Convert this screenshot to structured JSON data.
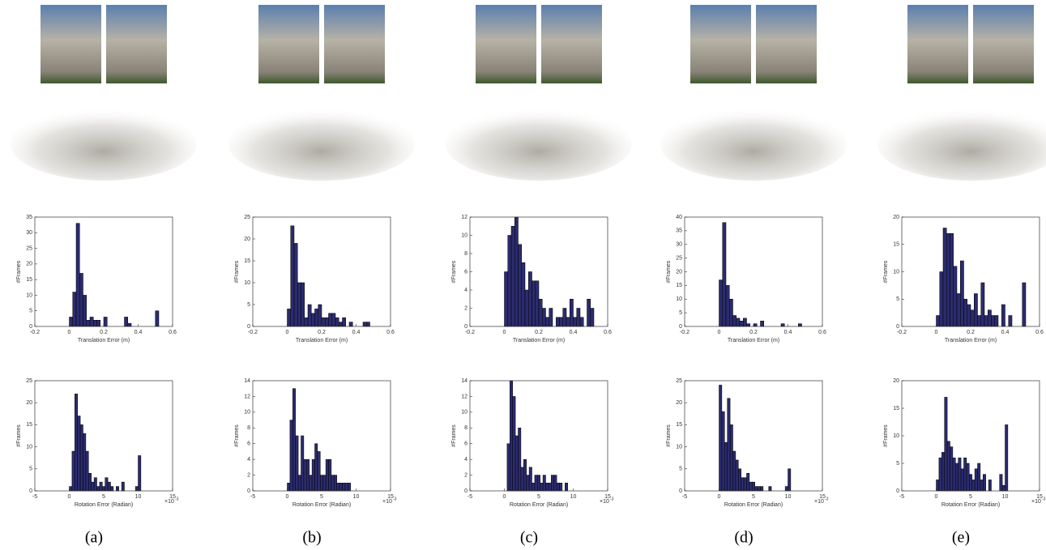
{
  "panels": [
    "(a)",
    "(b)",
    "(c)",
    "(d)",
    "(e)"
  ],
  "chart_data": [
    {
      "type": "histogram",
      "color": "#2b2b6e",
      "xlabel": "Translation Error (m)",
      "ylabel": "#Frames",
      "bins": [
        0,
        0.02,
        0.04,
        0.06,
        0.08,
        0.1,
        0.12,
        0.14,
        0.16,
        0.18,
        0.2,
        0.22,
        0.24,
        0.26,
        0.28,
        0.3,
        0.32,
        0.34,
        0.36,
        0.38,
        0.4,
        0.42,
        0.44,
        0.46,
        0.48,
        0.5,
        0.52
      ],
      "counts": [
        3,
        11,
        33,
        17,
        10,
        2,
        3,
        2,
        2,
        0,
        3,
        0,
        0,
        0,
        0,
        0,
        3,
        1,
        0,
        0,
        0,
        0,
        0,
        0,
        0,
        5
      ],
      "xlim": [
        -0.2,
        0.6
      ],
      "xticks": [
        -0.2,
        0,
        0.2,
        0.4,
        0.6
      ],
      "ylim": [
        0,
        35
      ],
      "yticks": [
        0,
        5,
        10,
        15,
        20,
        25,
        30,
        35
      ]
    },
    {
      "type": "histogram",
      "color": "#2b2b6e",
      "xlabel": "Translation Error (m)",
      "ylabel": "#Frames",
      "bins": [
        0,
        0.02,
        0.04,
        0.06,
        0.08,
        0.1,
        0.12,
        0.14,
        0.16,
        0.18,
        0.2,
        0.22,
        0.24,
        0.26,
        0.28,
        0.3,
        0.32,
        0.34,
        0.36,
        0.38,
        0.4,
        0.42,
        0.44,
        0.46,
        0.48,
        0.5,
        0.52
      ],
      "counts": [
        4,
        23,
        19,
        10,
        10,
        2,
        5,
        3,
        4,
        5,
        2,
        2,
        3,
        3,
        2,
        1,
        2,
        0,
        1,
        0,
        0,
        0,
        1,
        1,
        0,
        0
      ],
      "xlim": [
        -0.2,
        0.6
      ],
      "xticks": [
        -0.2,
        0,
        0.2,
        0.4,
        0.6
      ],
      "ylim": [
        0,
        25
      ],
      "yticks": [
        0,
        5,
        10,
        15,
        20,
        25
      ]
    },
    {
      "type": "histogram",
      "color": "#2b2b6e",
      "xlabel": "Translation Error (m)",
      "ylabel": "#Frames",
      "bins": [
        0,
        0.02,
        0.04,
        0.06,
        0.08,
        0.1,
        0.12,
        0.14,
        0.16,
        0.18,
        0.2,
        0.22,
        0.24,
        0.26,
        0.28,
        0.3,
        0.32,
        0.34,
        0.36,
        0.38,
        0.4,
        0.42,
        0.44,
        0.46,
        0.48,
        0.5,
        0.52
      ],
      "counts": [
        6,
        10,
        11,
        12,
        9,
        7,
        4,
        6,
        5,
        5,
        3,
        2,
        1,
        2,
        0,
        1,
        1,
        2,
        1,
        3,
        1,
        2,
        1,
        0,
        3,
        2
      ],
      "xlim": [
        -0.2,
        0.6
      ],
      "xticks": [
        -0.2,
        0,
        0.2,
        0.4,
        0.6
      ],
      "ylim": [
        0,
        12
      ],
      "yticks": [
        0,
        2,
        4,
        6,
        8,
        10,
        12
      ]
    },
    {
      "type": "histogram",
      "color": "#2b2b6e",
      "xlabel": "Translation Error (m)",
      "ylabel": "#Frames",
      "bins": [
        0,
        0.02,
        0.04,
        0.06,
        0.08,
        0.1,
        0.12,
        0.14,
        0.16,
        0.18,
        0.2,
        0.22,
        0.24,
        0.26,
        0.28,
        0.3,
        0.32,
        0.34,
        0.36,
        0.38,
        0.4,
        0.42,
        0.44,
        0.46,
        0.48,
        0.5,
        0.52
      ],
      "counts": [
        17,
        38,
        15,
        10,
        4,
        3,
        2,
        3,
        1,
        0,
        1,
        0,
        2,
        0,
        0,
        0,
        0,
        0,
        1,
        0,
        0,
        0,
        0,
        1,
        0,
        0
      ],
      "xlim": [
        -0.2,
        0.6
      ],
      "xticks": [
        -0.2,
        0,
        0.2,
        0.4,
        0.6
      ],
      "ylim": [
        0,
        40
      ],
      "yticks": [
        0,
        5,
        10,
        15,
        20,
        25,
        30,
        35,
        40
      ]
    },
    {
      "type": "histogram",
      "color": "#2b2b6e",
      "xlabel": "Translation Error (m)",
      "ylabel": "#Frames",
      "bins": [
        0,
        0.02,
        0.04,
        0.06,
        0.08,
        0.1,
        0.12,
        0.14,
        0.16,
        0.18,
        0.2,
        0.22,
        0.24,
        0.26,
        0.28,
        0.3,
        0.32,
        0.34,
        0.36,
        0.38,
        0.4,
        0.42,
        0.44,
        0.46,
        0.48,
        0.5,
        0.52
      ],
      "counts": [
        2,
        10,
        18,
        17,
        17,
        11,
        6,
        12,
        5,
        4,
        3,
        6,
        2,
        8,
        2,
        3,
        2,
        2,
        0,
        4,
        0,
        2,
        0,
        0,
        0,
        8
      ],
      "xlim": [
        -0.2,
        0.6
      ],
      "xticks": [
        -0.2,
        0,
        0.2,
        0.4,
        0.6
      ],
      "ylim": [
        0,
        20
      ],
      "yticks": [
        0,
        5,
        10,
        15,
        20
      ]
    },
    {
      "type": "histogram",
      "color": "#2b2b6e",
      "xlabel": "Rotation Error (Radian)",
      "ylabel": "#Frames",
      "x_scale_base": "×10",
      "x_scale_exponent": "-3",
      "bins": [
        0,
        0.4,
        0.8,
        1.2,
        1.6,
        2,
        2.4,
        2.8,
        3.2,
        3.6,
        4,
        4.4,
        4.8,
        5.2,
        5.6,
        6,
        6.4,
        6.8,
        7.2,
        7.6,
        8,
        8.4,
        8.8,
        9.2,
        9.6,
        10,
        10.4
      ],
      "counts": [
        1,
        9,
        22,
        17,
        15,
        13,
        9,
        4,
        2,
        3,
        1,
        2,
        1,
        3,
        2,
        1,
        0,
        1,
        0,
        2,
        0,
        0,
        0,
        0,
        1,
        8
      ],
      "xlim": [
        -5,
        15
      ],
      "xticks": [
        -5,
        0,
        5,
        10,
        15
      ],
      "ylim": [
        0,
        25
      ],
      "yticks": [
        0,
        5,
        10,
        15,
        20,
        25
      ]
    },
    {
      "type": "histogram",
      "color": "#2b2b6e",
      "xlabel": "Rotation Error (Radian)",
      "ylabel": "#Frames",
      "x_scale_base": "×10",
      "x_scale_exponent": "-3",
      "bins": [
        0,
        0.4,
        0.8,
        1.2,
        1.6,
        2,
        2.4,
        2.8,
        3.2,
        3.6,
        4,
        4.4,
        4.8,
        5.2,
        5.6,
        6,
        6.4,
        6.8,
        7.2,
        7.6,
        8,
        8.4,
        8.8,
        9.2,
        9.6,
        10,
        10.4
      ],
      "counts": [
        1,
        9,
        13,
        7,
        2,
        7,
        4,
        4,
        2,
        4,
        6,
        5,
        2,
        2,
        4,
        4,
        2,
        2,
        1,
        1,
        1,
        1,
        1,
        0,
        0,
        0
      ],
      "xlim": [
        -5,
        15
      ],
      "xticks": [
        -5,
        0,
        5,
        10,
        15
      ],
      "ylim": [
        0,
        14
      ],
      "yticks": [
        0,
        2,
        4,
        6,
        8,
        10,
        12,
        14
      ]
    },
    {
      "type": "histogram",
      "color": "#2b2b6e",
      "xlabel": "Rotation Error (Radian)",
      "ylabel": "#Frames",
      "x_scale_base": "×10",
      "x_scale_exponent": "-3",
      "bins": [
        0,
        0.4,
        0.8,
        1.2,
        1.6,
        2,
        2.4,
        2.8,
        3.2,
        3.6,
        4,
        4.4,
        4.8,
        5.2,
        5.6,
        6,
        6.4,
        6.8,
        7.2,
        7.6,
        8,
        8.4,
        8.8,
        9.2,
        9.6,
        10,
        10.4
      ],
      "counts": [
        0,
        6,
        14,
        12,
        7,
        8,
        3,
        4,
        2,
        3,
        1,
        2,
        2,
        1,
        2,
        1,
        1,
        2,
        2,
        1,
        1,
        0,
        1,
        0,
        0,
        0
      ],
      "xlim": [
        -5,
        15
      ],
      "xticks": [
        -5,
        0,
        5,
        10,
        15
      ],
      "ylim": [
        0,
        14
      ],
      "yticks": [
        0,
        2,
        4,
        6,
        8,
        10,
        12,
        14
      ]
    },
    {
      "type": "histogram",
      "color": "#2b2b6e",
      "xlabel": "Rotation Error (Radian)",
      "ylabel": "#Frames",
      "x_scale_base": "×10",
      "x_scale_exponent": "-3",
      "bins": [
        0,
        0.4,
        0.8,
        1.2,
        1.6,
        2,
        2.4,
        2.8,
        3.2,
        3.6,
        4,
        4.4,
        4.8,
        5.2,
        5.6,
        6,
        6.4,
        6.8,
        7.2,
        7.6,
        8,
        8.4,
        8.8,
        9.2,
        9.6,
        10,
        10.4
      ],
      "counts": [
        24,
        18,
        11,
        21,
        15,
        9,
        7,
        5,
        3,
        3,
        4,
        2,
        2,
        1,
        1,
        1,
        0,
        0,
        1,
        0,
        0,
        0,
        0,
        0,
        1,
        5
      ],
      "xlim": [
        -5,
        15
      ],
      "xticks": [
        -5,
        0,
        5,
        10,
        15
      ],
      "ylim": [
        0,
        25
      ],
      "yticks": [
        0,
        5,
        10,
        15,
        20,
        25
      ]
    },
    {
      "type": "histogram",
      "color": "#2b2b6e",
      "xlabel": "Rotation Error (Radian)",
      "ylabel": "#Frames",
      "x_scale_base": "×10",
      "x_scale_exponent": "-3",
      "bins": [
        0,
        0.4,
        0.8,
        1.2,
        1.6,
        2,
        2.4,
        2.8,
        3.2,
        3.6,
        4,
        4.4,
        4.8,
        5.2,
        5.6,
        6,
        6.4,
        6.8,
        7.2,
        7.6,
        8,
        8.4,
        8.8,
        9.2,
        9.6,
        10,
        10.4
      ],
      "counts": [
        2,
        6,
        7,
        17,
        9,
        8,
        6,
        5,
        6,
        4,
        6,
        5,
        3,
        2,
        4,
        5,
        2,
        3,
        0,
        2,
        0,
        0,
        0,
        3,
        1,
        12
      ],
      "xlim": [
        -5,
        15
      ],
      "xticks": [
        -5,
        0,
        5,
        10,
        15
      ],
      "ylim": [
        0,
        20
      ],
      "yticks": [
        0,
        5,
        10,
        15,
        20
      ]
    }
  ]
}
